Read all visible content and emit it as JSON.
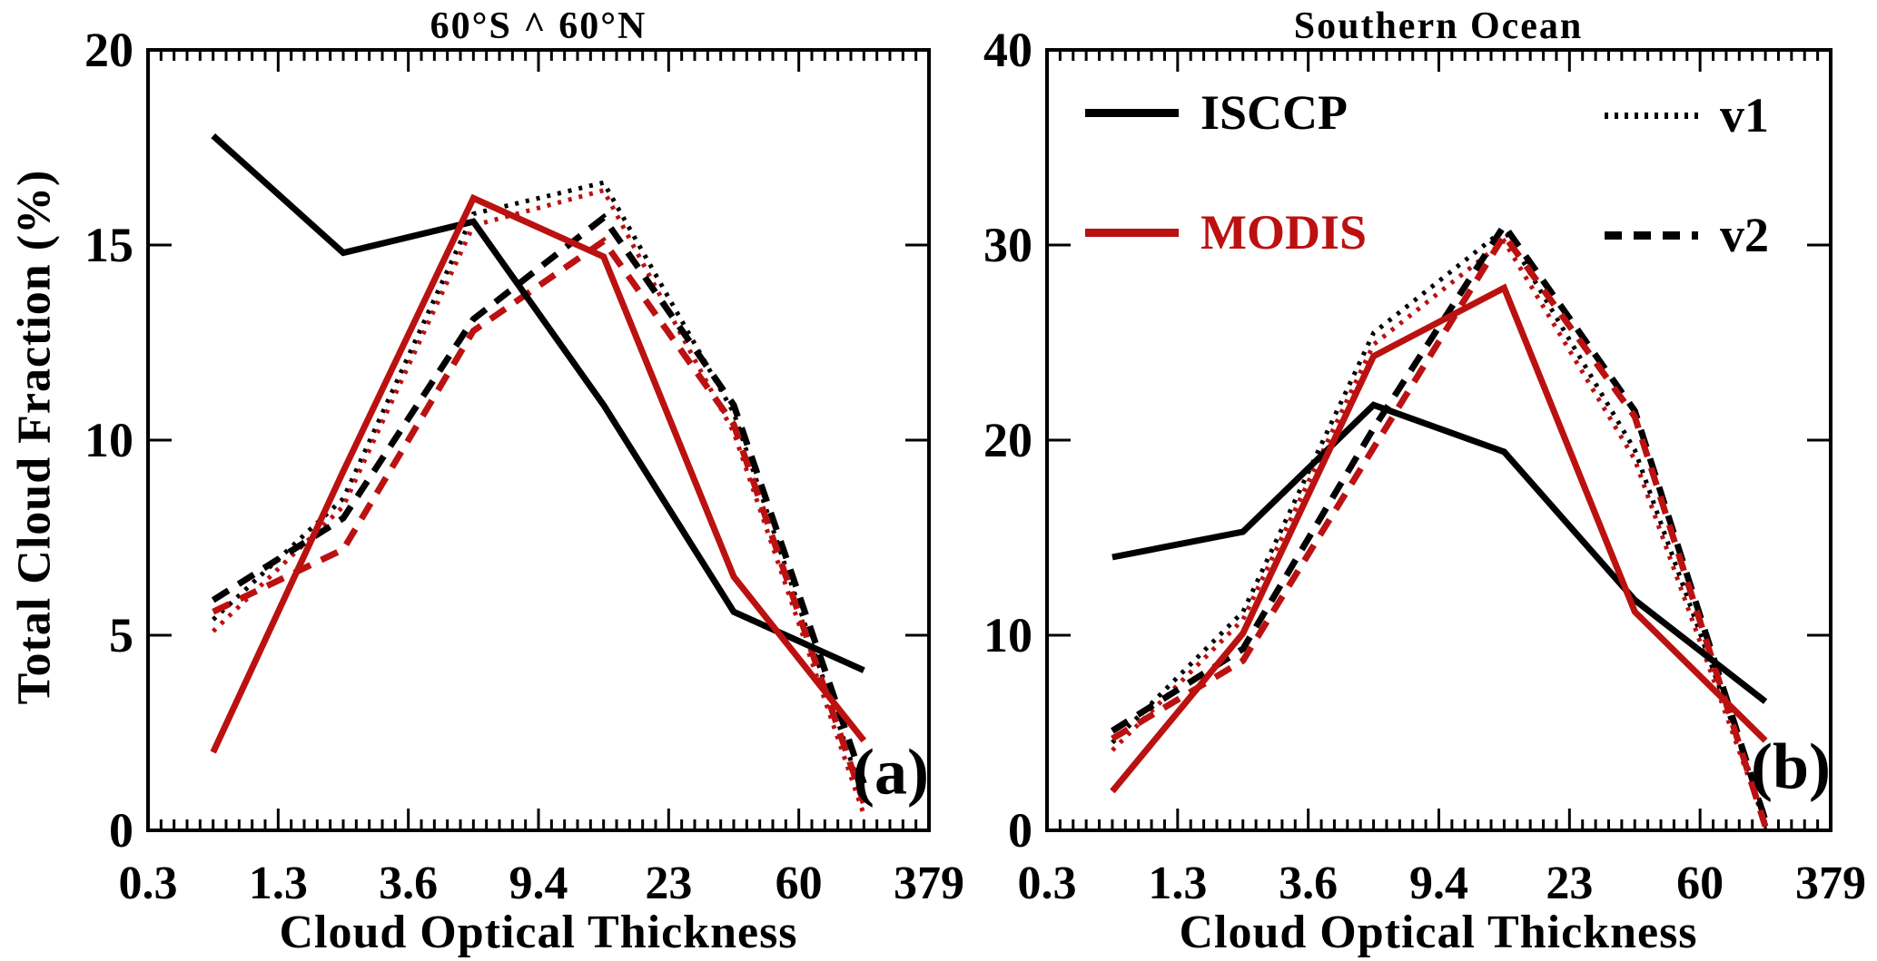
{
  "figure": {
    "background": "#ffffff",
    "black": "#000000",
    "accent_red": "#bb1111",
    "y_axis_label": "Total Cloud Fraction (%)",
    "x_axis_label": "Cloud Optical Thickness",
    "legend": {
      "isccp": {
        "label": "ISCCP",
        "style": "solid",
        "color": "#000000"
      },
      "modis": {
        "label": "MODIS",
        "style": "solid",
        "color": "#bb1111"
      },
      "v1": {
        "label": "v1",
        "style": "dotted",
        "color": "#000000"
      },
      "v2": {
        "label": "v2",
        "style": "dashed",
        "color": "#000000"
      }
    }
  },
  "chart_data": [
    {
      "type": "line",
      "title": "60°S ^ 60°N",
      "panel_letter": "(a)",
      "xlabel": "Cloud Optical Thickness",
      "ylabel": "Total Cloud Fraction (%)",
      "x_tick_labels": [
        "0.3",
        "1.3",
        "3.6",
        "9.4",
        "23",
        "60",
        "379"
      ],
      "x_layout": "7 log-spaced bin-edge ticks; 6 data points plotted at bin centers",
      "ylim": [
        0,
        20
      ],
      "y_ticks": [
        0,
        5,
        10,
        15,
        20
      ],
      "grid": false,
      "series": [
        {
          "name": "ISCCP",
          "color": "#000000",
          "style": "solid",
          "values": [
            17.8,
            14.8,
            15.6,
            10.9,
            5.6,
            4.1
          ]
        },
        {
          "name": "MODIS",
          "color": "#bb1111",
          "style": "solid",
          "values": [
            2.0,
            9.2,
            16.2,
            14.7,
            6.5,
            2.3
          ]
        },
        {
          "name": "ISCCP v1",
          "color": "#000000",
          "style": "dotted",
          "values": [
            5.4,
            8.5,
            15.8,
            16.6,
            10.7,
            0.8
          ]
        },
        {
          "name": "MODIS v1",
          "color": "#bb1111",
          "style": "dotted",
          "values": [
            5.1,
            8.3,
            15.5,
            16.4,
            10.2,
            0.4
          ]
        },
        {
          "name": "ISCCP v2",
          "color": "#000000",
          "style": "dashed",
          "values": [
            5.9,
            8.0,
            13.1,
            15.7,
            10.9,
            1.2
          ]
        },
        {
          "name": "MODIS v2",
          "color": "#bb1111",
          "style": "dashed",
          "values": [
            5.6,
            7.2,
            12.8,
            15.1,
            10.4,
            0.7
          ]
        }
      ]
    },
    {
      "type": "line",
      "title": "Southern Ocean",
      "panel_letter": "(b)",
      "xlabel": "Cloud Optical Thickness",
      "ylabel": "",
      "x_tick_labels": [
        "0.3",
        "1.3",
        "3.6",
        "9.4",
        "23",
        "60",
        "379"
      ],
      "x_layout": "7 log-spaced bin-edge ticks; 6 data points plotted at bin centers",
      "ylim": [
        0,
        40
      ],
      "y_ticks": [
        0,
        10,
        20,
        30,
        40
      ],
      "grid": false,
      "series": [
        {
          "name": "ISCCP",
          "color": "#000000",
          "style": "solid",
          "values": [
            14.0,
            15.3,
            21.8,
            19.4,
            11.8,
            6.6
          ]
        },
        {
          "name": "MODIS",
          "color": "#bb1111",
          "style": "solid",
          "values": [
            2.0,
            10.1,
            24.3,
            27.8,
            11.2,
            4.6
          ]
        },
        {
          "name": "ISCCP v1",
          "color": "#000000",
          "style": "dotted",
          "values": [
            4.5,
            11.2,
            25.5,
            30.8,
            19.5,
            0.7
          ]
        },
        {
          "name": "MODIS v1",
          "color": "#bb1111",
          "style": "dotted",
          "values": [
            4.1,
            10.8,
            24.9,
            30.2,
            19.0,
            0.3
          ]
        },
        {
          "name": "ISCCP v2",
          "color": "#000000",
          "style": "dashed",
          "values": [
            5.1,
            9.3,
            20.6,
            31.0,
            21.5,
            0.5
          ]
        },
        {
          "name": "MODIS v2",
          "color": "#bb1111",
          "style": "dashed",
          "values": [
            4.7,
            8.7,
            19.6,
            30.5,
            21.2,
            0.2
          ]
        }
      ]
    }
  ]
}
